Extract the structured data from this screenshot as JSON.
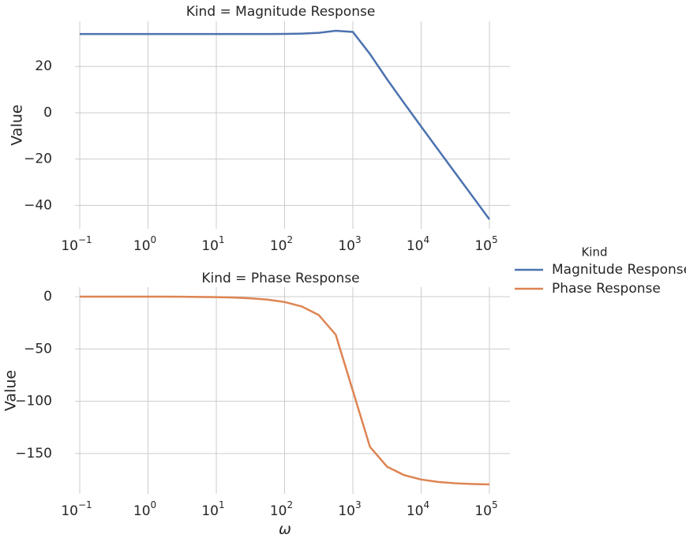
{
  "chart_data": [
    {
      "type": "line",
      "title": "Kind = Magnitude Response",
      "ylabel": "Value",
      "log_x": true,
      "grid": true,
      "x": [
        0.1,
        0.178,
        0.316,
        0.562,
        1,
        1.78,
        3.16,
        5.62,
        10,
        17.8,
        31.6,
        56.2,
        100,
        178,
        316,
        562,
        1000,
        1778,
        3162,
        5623,
        10000,
        17783,
        31623,
        56234,
        100000
      ],
      "series": [
        {
          "name": "Magnitude Response",
          "color": "#4c72b0",
          "values": [
            34.0,
            34.0,
            34.0,
            34.0,
            34.0,
            34.0,
            34.0,
            34.0,
            34.0,
            34.0,
            34.0,
            34.01,
            34.05,
            34.16,
            34.5,
            35.4,
            34.9,
            25.4,
            14.5,
            4.2,
            -5.95,
            -15.98,
            -26.0,
            -36.0,
            -46.0
          ]
        }
      ],
      "xlim": [
        0.05,
        200000
      ],
      "xticks": [
        {
          "value": 0.1,
          "label": {
            "base": "10",
            "exponent": "−1"
          }
        },
        {
          "value": 1,
          "label": {
            "base": "10",
            "exponent": "0"
          }
        },
        {
          "value": 10,
          "label": {
            "base": "10",
            "exponent": "1"
          }
        },
        {
          "value": 100,
          "label": {
            "base": "10",
            "exponent": "2"
          }
        },
        {
          "value": 1000,
          "label": {
            "base": "10",
            "exponent": "3"
          }
        },
        {
          "value": 10000,
          "label": {
            "base": "10",
            "exponent": "4"
          }
        },
        {
          "value": 100000,
          "label": {
            "base": "10",
            "exponent": "5"
          }
        }
      ],
      "ylim": [
        -50.1,
        39.5
      ],
      "yticks": [
        {
          "value": -40,
          "label": "−40"
        },
        {
          "value": -20,
          "label": "−20"
        },
        0,
        20
      ]
    },
    {
      "type": "line",
      "title": "Kind = Phase Response",
      "ylabel": "Value",
      "xlabel": "ω",
      "log_x": true,
      "grid": true,
      "x": [
        0.1,
        0.178,
        0.316,
        0.562,
        1,
        1.78,
        3.16,
        5.62,
        10,
        17.8,
        31.6,
        56.2,
        100,
        178,
        316,
        562,
        1000,
        1778,
        3162,
        5623,
        10000,
        17783,
        31623,
        56234,
        100000
      ],
      "series": [
        {
          "name": "Phase Response",
          "color": "#dd8452",
          "values": [
            -0.005,
            -0.009,
            -0.016,
            -0.029,
            -0.052,
            -0.092,
            -0.163,
            -0.29,
            -0.52,
            -0.92,
            -1.63,
            -2.91,
            -5.19,
            -9.39,
            -17.55,
            -36.5,
            -90,
            -143.5,
            -162.45,
            -170.6,
            -174.8,
            -177.1,
            -178.37,
            -179.08,
            -179.48
          ]
        }
      ],
      "xlim": [
        0.05,
        200000
      ],
      "xticks": [
        {
          "value": 0.1,
          "label": {
            "base": "10",
            "exponent": "−1"
          }
        },
        {
          "value": 1,
          "label": {
            "base": "10",
            "exponent": "0"
          }
        },
        {
          "value": 10,
          "label": {
            "base": "10",
            "exponent": "1"
          }
        },
        {
          "value": 100,
          "label": {
            "base": "10",
            "exponent": "2"
          }
        },
        {
          "value": 1000,
          "label": {
            "base": "10",
            "exponent": "3"
          }
        },
        {
          "value": 10000,
          "label": {
            "base": "10",
            "exponent": "4"
          }
        },
        {
          "value": 100000,
          "label": {
            "base": "10",
            "exponent": "5"
          }
        }
      ],
      "ylim": [
        -188.5,
        9
      ],
      "yticks": [
        {
          "value": -150,
          "label": "−150"
        },
        {
          "value": -100,
          "label": "−100"
        },
        {
          "value": -50,
          "label": "−50"
        },
        0
      ]
    }
  ],
  "legend": {
    "title": "Kind"
  }
}
